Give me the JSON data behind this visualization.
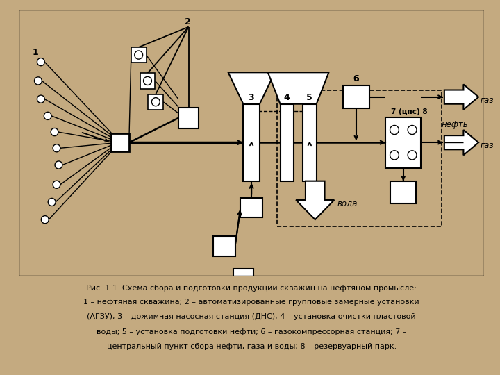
{
  "bg_color": "#c4aa80",
  "lc": "#000000",
  "caption": [
    "Рис. 1.1. Схема сбора и подготовки продукции скважин на нефтяном промысле:",
    "1 – нефтяная скважина; 2 – автоматизированные групповые замерные установки",
    "(АГЗУ); 3 – дожимная насосная станция (ДНС); 4 – установка очистки пластовой",
    "воды; 5 – установка подготовки нефти; 6 – газокомпрессорная станция; 7 –",
    "центральный пункт сбора нефти, газа и воды; 8 – резервуарный парк."
  ]
}
